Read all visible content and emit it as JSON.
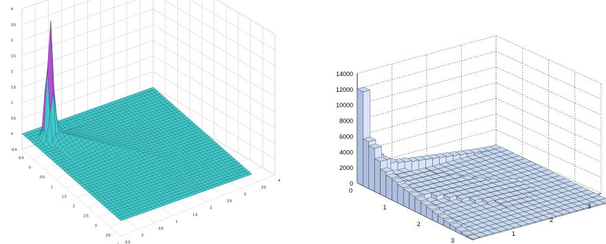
{
  "chart_data": [
    {
      "type": "surface",
      "description_visible": "3D mesh surface, cyan faces with dark edges, sharp spike near origin",
      "z_ticks": [
        "4",
        "3.5",
        "3",
        "2.5",
        "2",
        "1.5",
        "1",
        "0.5",
        "0",
        "-0.5"
      ],
      "x_ticks": [
        "-0.5",
        "0",
        "0.5",
        "1",
        "1.5",
        "2",
        "2.5",
        "3",
        "3.5",
        "4"
      ],
      "y_ticks": [
        "-0.5",
        "0",
        "0.5",
        "1",
        "1.5",
        "2",
        "2.5",
        "3",
        "3.5",
        "4"
      ],
      "zlim": [
        -0.5,
        4
      ],
      "xlim": [
        -0.5,
        4
      ],
      "ylim": [
        -0.5,
        4
      ],
      "peak_value": 3.7,
      "grid": true,
      "colors": {
        "surface": "#40c8c8",
        "edge": "#0b3a4a",
        "ridge_highlight": "#b84bd8"
      }
    },
    {
      "type": "bar3d",
      "description_visible": "3D histogram, light blue bars with dark edges, tall bars near origin decaying outward",
      "z_ticks": [
        "14000",
        "12000",
        "10000",
        "8000",
        "6000",
        "4000",
        "2000",
        "0"
      ],
      "x_ticks": [
        "0",
        "1",
        "2",
        "3"
      ],
      "y_ticks": [
        "0",
        "1",
        "2",
        "3"
      ],
      "zlim": [
        0,
        14000
      ],
      "corner_bars": [
        12000,
        6000,
        5500,
        4200,
        3200,
        2800,
        2600,
        2300,
        2100,
        1900,
        1700,
        1500,
        1300,
        1100,
        900,
        700,
        500,
        350,
        200,
        100
      ],
      "grid": "dotted",
      "colors": {
        "bar": "#c6d7f0",
        "edge": "#1a1a1a"
      }
    }
  ]
}
